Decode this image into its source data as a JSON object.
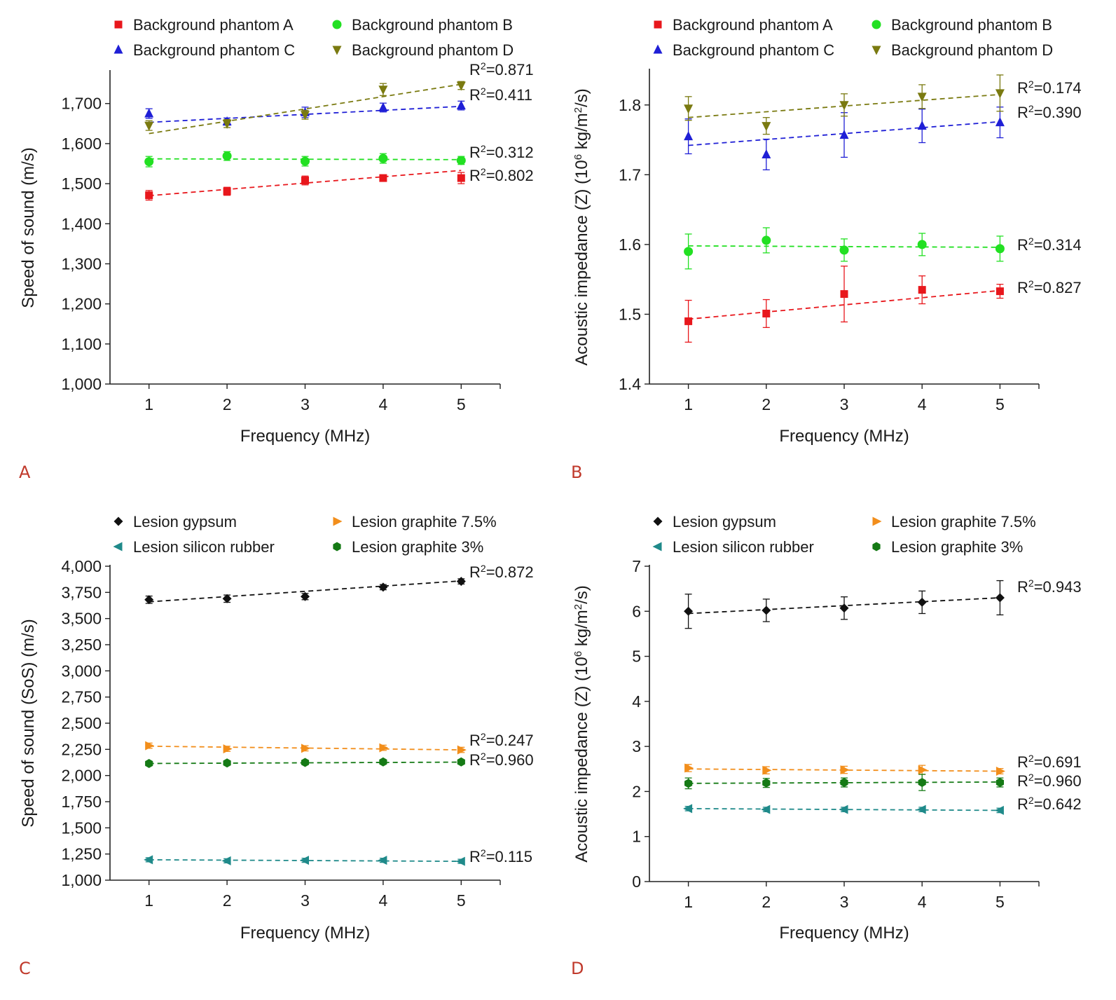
{
  "chart_data": [
    {
      "panel": "A",
      "type": "scatter",
      "xlabel": "Frequency (MHz)",
      "ylabel": "Speed of sound (m/s)",
      "x": [
        1,
        2,
        3,
        4,
        5
      ],
      "xlim": [
        0.5,
        5.5
      ],
      "ylim": [
        1000,
        1780
      ],
      "yticks": [
        1000,
        1100,
        1200,
        1300,
        1400,
        1500,
        1600,
        1700
      ],
      "ytick_labels": [
        "1,000",
        "1,100",
        "1,200",
        "1,300",
        "1,400",
        "1,500",
        "1,600",
        "1,700"
      ],
      "legend_columns": [
        0,
        1,
        0,
        1
      ],
      "series": [
        {
          "name": "Background phantom A",
          "color": "#e8171c",
          "marker": "square",
          "values": [
            1471,
            1481,
            1508,
            1514,
            1514
          ],
          "errors": [
            12,
            10,
            11,
            8,
            14
          ],
          "fit": [
            1470,
            1533
          ],
          "r2": "R²=0.802"
        },
        {
          "name": "Background phantom B",
          "color": "#22e022",
          "marker": "circle",
          "values": [
            1555,
            1569,
            1556,
            1563,
            1558
          ],
          "errors": [
            13,
            11,
            12,
            12,
            10
          ],
          "fit": [
            1562,
            1560
          ],
          "r2": "R²=0.312"
        },
        {
          "name": "Background phantom C",
          "color": "#1f1fd6",
          "marker": "triangle-up",
          "values": [
            1675,
            1655,
            1678,
            1690,
            1695
          ],
          "errors": [
            12,
            9,
            13,
            11,
            11
          ],
          "fit": [
            1653,
            1693
          ],
          "r2": "R²=0.411"
        },
        {
          "name": "Background phantom D",
          "color": "#7a7a10",
          "marker": "triangle-down",
          "values": [
            1645,
            1650,
            1672,
            1735,
            1745
          ],
          "errors": [
            12,
            10,
            11,
            15,
            10
          ],
          "fit": [
            1625,
            1748
          ],
          "r2": "R²=0.871"
        }
      ]
    },
    {
      "panel": "B",
      "type": "scatter",
      "xlabel": "Frequency (MHz)",
      "ylabel": "Acoustic impedance (Z) (10^6 kg/m^2/s)",
      "ylabel_parts": [
        "Acoustic impedance (Z) (10",
        "6",
        " kg/m",
        "2",
        "/s)"
      ],
      "x": [
        1,
        2,
        3,
        4,
        5
      ],
      "xlim": [
        0.5,
        5.5
      ],
      "ylim": [
        1.4,
        1.85
      ],
      "yticks": [
        1.4,
        1.5,
        1.6,
        1.7,
        1.8
      ],
      "ytick_labels": [
        "1.4",
        "1.5",
        "1.6",
        "1.7",
        "1.8"
      ],
      "legend_columns": [
        0,
        1,
        0,
        1
      ],
      "series": [
        {
          "name": "Background phantom A",
          "color": "#e8171c",
          "marker": "square",
          "values": [
            1.49,
            1.501,
            1.529,
            1.535,
            1.533
          ],
          "errors": [
            0.03,
            0.02,
            0.04,
            0.02,
            0.01
          ],
          "fit": [
            1.493,
            1.534
          ],
          "r2": "R²=0.827"
        },
        {
          "name": "Background phantom B",
          "color": "#22e022",
          "marker": "circle",
          "values": [
            1.59,
            1.606,
            1.592,
            1.6,
            1.594
          ],
          "errors": [
            0.025,
            0.018,
            0.016,
            0.016,
            0.018
          ],
          "fit": [
            1.598,
            1.596
          ],
          "r2": "R²=0.314"
        },
        {
          "name": "Background phantom C",
          "color": "#1f1fd6",
          "marker": "triangle-up",
          "values": [
            1.755,
            1.729,
            1.757,
            1.77,
            1.775
          ],
          "errors": [
            0.025,
            0.022,
            0.032,
            0.024,
            0.022
          ],
          "fit": [
            1.742,
            1.776
          ],
          "r2": "R²=0.390"
        },
        {
          "name": "Background phantom D",
          "color": "#7a7a10",
          "marker": "triangle-down",
          "values": [
            1.795,
            1.77,
            1.8,
            1.812,
            1.817
          ],
          "errors": [
            0.017,
            0.012,
            0.016,
            0.017,
            0.026
          ],
          "fit": [
            1.782,
            1.815
          ],
          "r2": "R²=0.174"
        }
      ]
    },
    {
      "panel": "C",
      "type": "scatter",
      "xlabel": "Frequency (MHz)",
      "ylabel": "Speed of sound (SoS) (m/s)",
      "x": [
        1,
        2,
        3,
        4,
        5
      ],
      "xlim": [
        0.5,
        5.5
      ],
      "ylim": [
        1000,
        4000
      ],
      "yticks": [
        1000,
        1250,
        1500,
        1750,
        2000,
        2250,
        2500,
        2750,
        3000,
        3250,
        3500,
        3750,
        4000
      ],
      "ytick_labels": [
        "1,000",
        "1,250",
        "1,500",
        "1,750",
        "2,000",
        "2,250",
        "2,500",
        "2,750",
        "3,000",
        "3,250",
        "3,500",
        "3,750",
        "4,000"
      ],
      "legend_columns": [
        0,
        1,
        1,
        0
      ],
      "series": [
        {
          "name": "Lesion gypsum",
          "color": "#111111",
          "marker": "diamond",
          "values": [
            3680,
            3690,
            3710,
            3800,
            3855
          ],
          "errors": [
            35,
            35,
            30,
            25,
            25
          ],
          "fit": [
            3660,
            3860
          ],
          "r2": "R²=0.872"
        },
        {
          "name": "Lesion graphite 7.5%",
          "color": "#f28e1b",
          "marker": "triangle-right",
          "values": [
            2285,
            2255,
            2260,
            2265,
            2245
          ],
          "errors": [
            25,
            25,
            25,
            25,
            25
          ],
          "fit": [
            2280,
            2245
          ],
          "r2": "R²=0.247"
        },
        {
          "name": "Lesion graphite 3%",
          "color": "#157a15",
          "marker": "hexagon",
          "values": [
            2115,
            2120,
            2125,
            2130,
            2130
          ],
          "errors": [
            20,
            20,
            20,
            20,
            20
          ],
          "fit": [
            2115,
            2128
          ],
          "r2": "R²=0.960"
        },
        {
          "name": "Lesion silicon rubber",
          "color": "#1f8a8a",
          "marker": "triangle-left",
          "values": [
            1195,
            1185,
            1190,
            1190,
            1180
          ],
          "errors": [
            20,
            20,
            20,
            20,
            20
          ],
          "fit": [
            1195,
            1180
          ],
          "r2": "R²=0.115"
        }
      ]
    },
    {
      "panel": "D",
      "type": "scatter",
      "xlabel": "Frequency (MHz)",
      "ylabel": "Acoustic impedance (Z) (10^6 kg/m^2/s)",
      "ylabel_parts": [
        "Acoustic impedance (Z) (10",
        "6",
        " kg/m",
        "2",
        "/s)"
      ],
      "x": [
        1,
        2,
        3,
        4,
        5
      ],
      "xlim": [
        0.5,
        5.5
      ],
      "ylim": [
        0,
        7
      ],
      "yticks": [
        0,
        1,
        2,
        3,
        4,
        5,
        6,
        7
      ],
      "ytick_labels": [
        "0",
        "1",
        "2",
        "3",
        "4",
        "5",
        "6",
        "7"
      ],
      "legend_columns": [
        0,
        1,
        1,
        0
      ],
      "series": [
        {
          "name": "Lesion gypsum",
          "color": "#111111",
          "marker": "diamond",
          "values": [
            6.0,
            6.02,
            6.07,
            6.2,
            6.3
          ],
          "errors": [
            0.38,
            0.25,
            0.25,
            0.25,
            0.38
          ],
          "fit": [
            5.95,
            6.3
          ],
          "r2": "R²=0.943"
        },
        {
          "name": "Lesion graphite 7.5%",
          "color": "#f28e1b",
          "marker": "triangle-right",
          "values": [
            2.52,
            2.47,
            2.48,
            2.48,
            2.45
          ],
          "errors": [
            0.08,
            0.08,
            0.08,
            0.1,
            0.06
          ],
          "fit": [
            2.5,
            2.45
          ],
          "r2": "R²=0.691"
        },
        {
          "name": "Lesion graphite 3%",
          "color": "#157a15",
          "marker": "hexagon",
          "values": [
            2.18,
            2.19,
            2.2,
            2.2,
            2.2
          ],
          "errors": [
            0.12,
            0.1,
            0.1,
            0.18,
            0.1
          ],
          "fit": [
            2.18,
            2.21
          ],
          "r2": "R²=0.960"
        },
        {
          "name": "Lesion silicon rubber",
          "color": "#1f8a8a",
          "marker": "triangle-left",
          "values": [
            1.62,
            1.6,
            1.6,
            1.6,
            1.58
          ],
          "errors": [
            0.05,
            0.05,
            0.05,
            0.05,
            0.05
          ],
          "fit": [
            1.62,
            1.58
          ],
          "r2": "R²=0.642"
        }
      ]
    }
  ]
}
